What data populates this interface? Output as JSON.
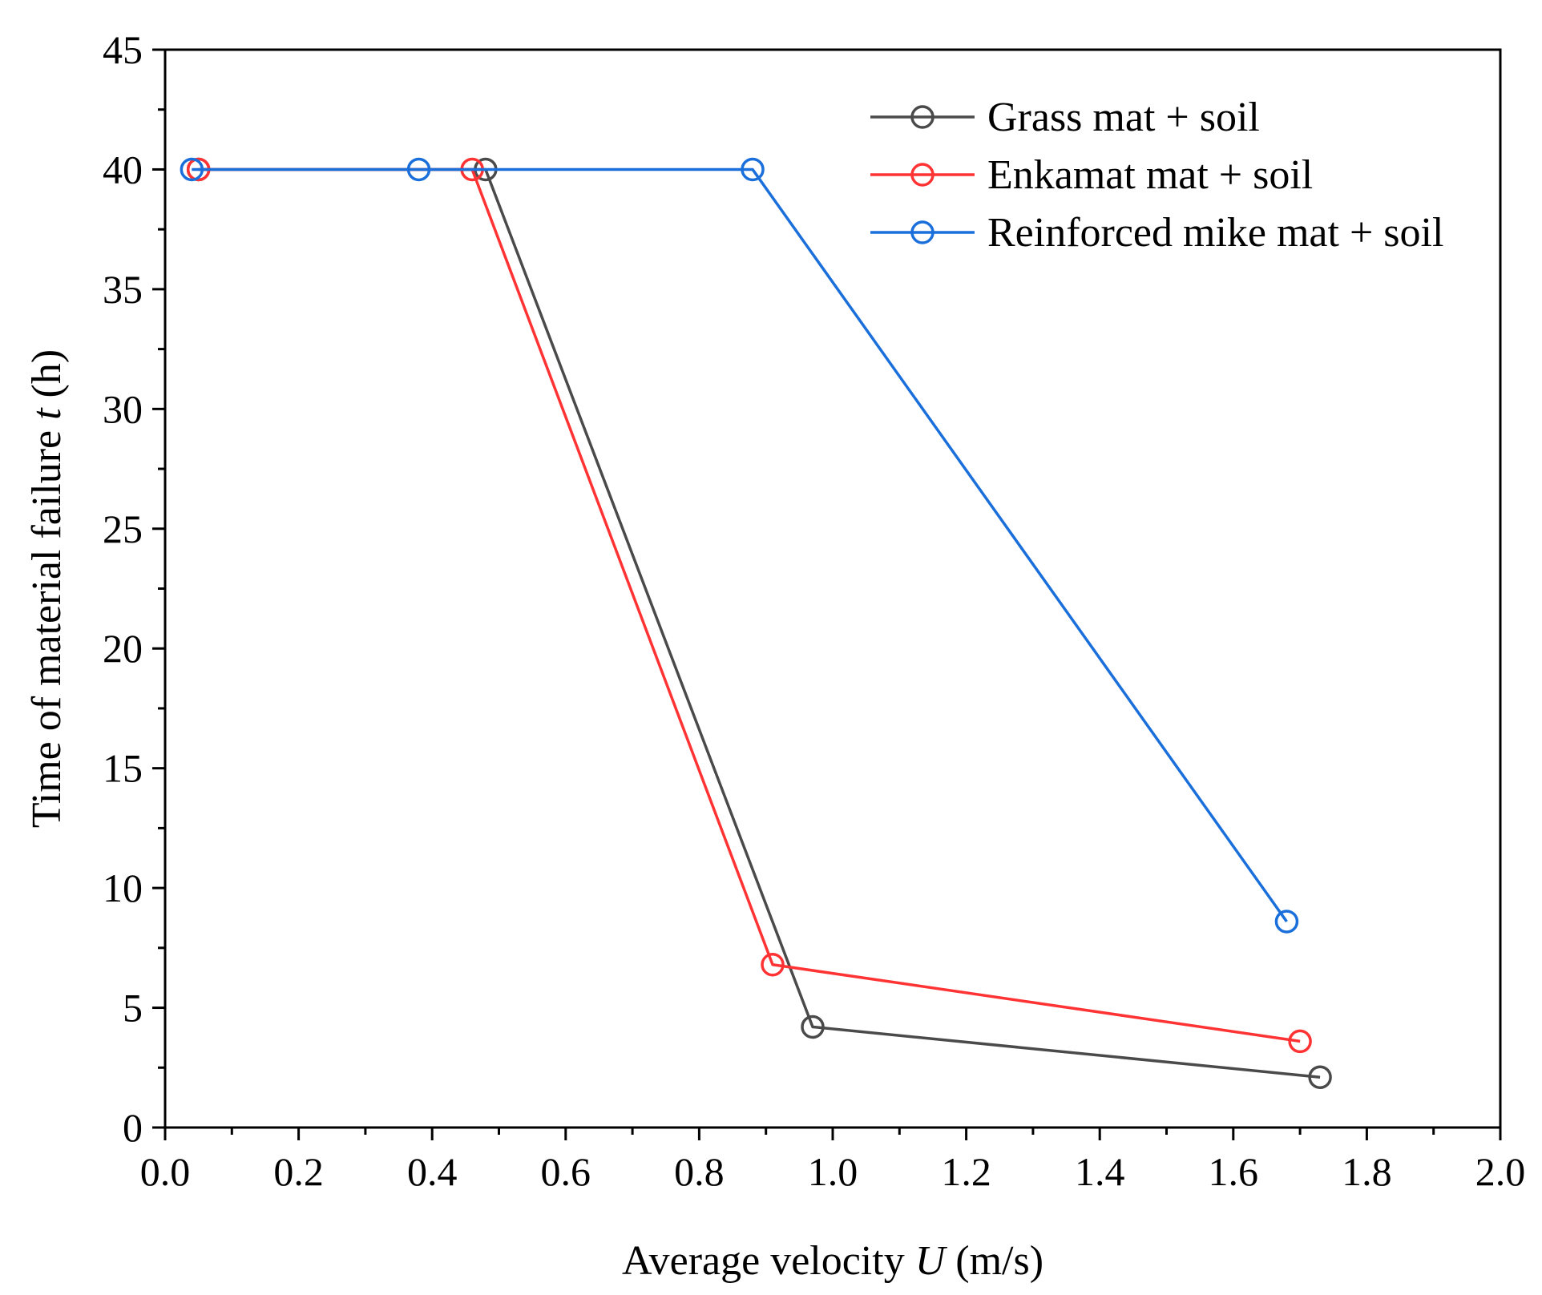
{
  "chart_data": {
    "type": "line",
    "title": "",
    "xlabel": {
      "prefix": "Average velocity ",
      "var": "U",
      "suffix": " (m/s)"
    },
    "ylabel": {
      "prefix": "Time of material failure ",
      "var": "t",
      "suffix": " (h)"
    },
    "xlim": [
      0.0,
      2.0
    ],
    "ylim": [
      0,
      45
    ],
    "x_ticks": [
      "0.0",
      "0.2",
      "0.4",
      "0.6",
      "0.8",
      "1.0",
      "1.2",
      "1.4",
      "1.6",
      "1.8",
      "2.0"
    ],
    "y_ticks": [
      "0",
      "5",
      "10",
      "15",
      "20",
      "25",
      "30",
      "35",
      "40",
      "45"
    ],
    "grid": false,
    "legend_position": "top-right",
    "series": [
      {
        "name": "Grass mat + soil",
        "color": "#4a4a4a",
        "points": [
          [
            0.05,
            40
          ],
          [
            0.48,
            40
          ],
          [
            0.97,
            4.2
          ],
          [
            1.73,
            2.1
          ]
        ]
      },
      {
        "name": "Enkamat mat + soil",
        "color": "#ff3333",
        "points": [
          [
            0.05,
            40
          ],
          [
            0.46,
            40
          ],
          [
            0.91,
            6.8
          ],
          [
            1.7,
            3.6
          ]
        ]
      },
      {
        "name": "Reinforced mike mat + soil",
        "color": "#1a6fdb",
        "points": [
          [
            0.04,
            40
          ],
          [
            0.38,
            40
          ],
          [
            0.88,
            40
          ],
          [
            1.68,
            8.6
          ]
        ]
      }
    ]
  }
}
